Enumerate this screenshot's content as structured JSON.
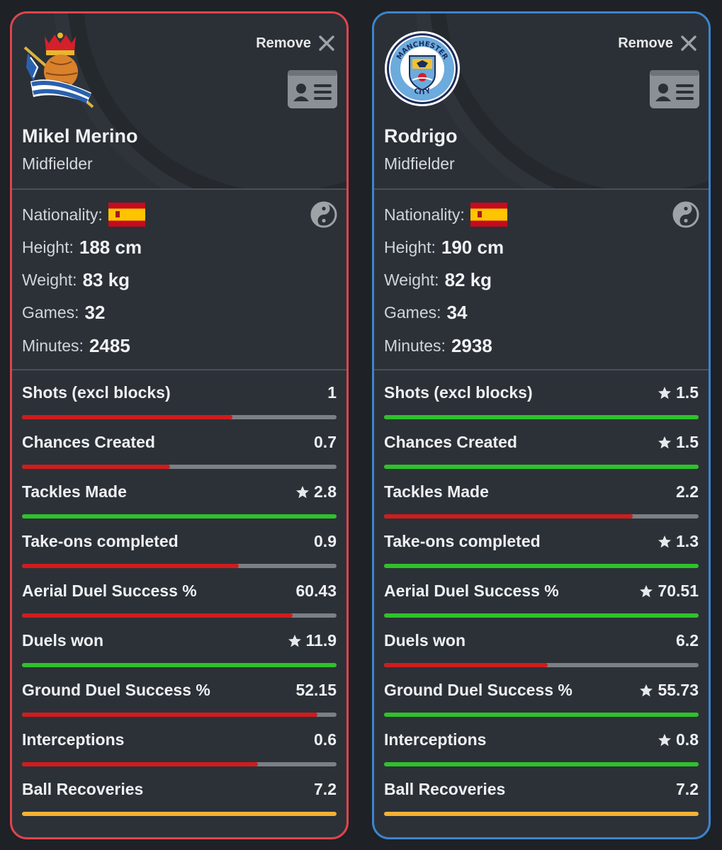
{
  "remove_label": "Remove",
  "labels": {
    "nationality": "Nationality:",
    "height": "Height:",
    "weight": "Weight:",
    "games": "Games:",
    "minutes": "Minutes:"
  },
  "colors": {
    "red_border": "#e0444c",
    "blue_border": "#3c84cf",
    "bar_red": "#d01c1c",
    "bar_green": "#2ec22a",
    "bar_yellow": "#f2b233",
    "bar_track": "#7c8085"
  },
  "players": [
    {
      "name": "Mikel Merino",
      "position": "Midfielder",
      "club_logo": "real-sociedad-crest",
      "nationality_flag": "spain-flag",
      "height": "188 cm",
      "weight": "83 kg",
      "games": "32",
      "minutes": "2485",
      "stats": [
        {
          "label": "Shots (excl blocks)",
          "value": "1",
          "star": false,
          "bar_color": "red",
          "fill": 0.67
        },
        {
          "label": "Chances Created",
          "value": "0.7",
          "star": false,
          "bar_color": "red",
          "fill": 0.47
        },
        {
          "label": "Tackles Made",
          "value": "2.8",
          "star": true,
          "bar_color": "green",
          "fill": 1.0
        },
        {
          "label": "Take-ons completed",
          "value": "0.9",
          "star": false,
          "bar_color": "red",
          "fill": 0.69
        },
        {
          "label": "Aerial Duel Success %",
          "value": "60.43",
          "star": false,
          "bar_color": "red",
          "fill": 0.86
        },
        {
          "label": "Duels won",
          "value": "11.9",
          "star": true,
          "bar_color": "green",
          "fill": 1.0
        },
        {
          "label": "Ground Duel Success %",
          "value": "52.15",
          "star": false,
          "bar_color": "red",
          "fill": 0.94
        },
        {
          "label": "Interceptions",
          "value": "0.6",
          "star": false,
          "bar_color": "red",
          "fill": 0.75
        },
        {
          "label": "Ball Recoveries",
          "value": "7.2",
          "star": false,
          "bar_color": "yellow",
          "fill": 1.0
        }
      ]
    },
    {
      "name": "Rodrigo",
      "position": "Midfielder",
      "club_logo": "manchester-city-crest",
      "club_logo_text_top": "MANCHESTER",
      "club_logo_text_bottom": "CITY",
      "nationality_flag": "spain-flag",
      "height": "190 cm",
      "weight": "82 kg",
      "games": "34",
      "minutes": "2938",
      "stats": [
        {
          "label": "Shots (excl blocks)",
          "value": "1.5",
          "star": true,
          "bar_color": "green",
          "fill": 1.0
        },
        {
          "label": "Chances Created",
          "value": "1.5",
          "star": true,
          "bar_color": "green",
          "fill": 1.0
        },
        {
          "label": "Tackles Made",
          "value": "2.2",
          "star": false,
          "bar_color": "red",
          "fill": 0.79
        },
        {
          "label": "Take-ons completed",
          "value": "1.3",
          "star": true,
          "bar_color": "green",
          "fill": 1.0
        },
        {
          "label": "Aerial Duel Success %",
          "value": "70.51",
          "star": true,
          "bar_color": "green",
          "fill": 1.0
        },
        {
          "label": "Duels won",
          "value": "6.2",
          "star": false,
          "bar_color": "red",
          "fill": 0.52
        },
        {
          "label": "Ground Duel Success %",
          "value": "55.73",
          "star": true,
          "bar_color": "green",
          "fill": 1.0
        },
        {
          "label": "Interceptions",
          "value": "0.8",
          "star": true,
          "bar_color": "green",
          "fill": 1.0
        },
        {
          "label": "Ball Recoveries",
          "value": "7.2",
          "star": false,
          "bar_color": "yellow",
          "fill": 1.0
        }
      ]
    }
  ]
}
